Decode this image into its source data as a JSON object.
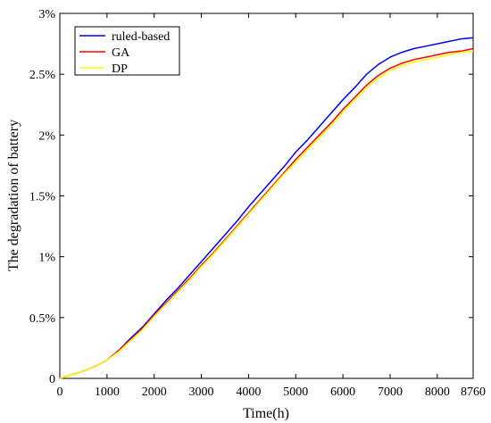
{
  "chart_data": {
    "type": "line",
    "title": "",
    "xlabel": "Time(h)",
    "ylabel": "The degradation  of battery",
    "xlim": [
      0,
      8760
    ],
    "ylim": [
      0,
      3
    ],
    "x_ticks": [
      0,
      1000,
      2000,
      3000,
      4000,
      5000,
      6000,
      7000,
      8000,
      8760
    ],
    "x_tick_labels": [
      "0",
      "1000",
      "2000",
      "3000",
      "4000",
      "5000",
      "6000",
      "7000",
      "8000",
      "8760"
    ],
    "y_ticks": [
      0,
      0.5,
      1,
      1.5,
      2,
      2.5,
      3
    ],
    "y_tick_labels": [
      "0",
      "0.5%",
      "1%",
      "1.5%",
      "2%",
      "2.5%",
      "3%"
    ],
    "grid": false,
    "legend_position": "top-left",
    "x": [
      0,
      250,
      500,
      750,
      1000,
      1250,
      1500,
      1750,
      2000,
      2250,
      2500,
      2750,
      3000,
      3250,
      3500,
      3750,
      4000,
      4250,
      4500,
      4750,
      5000,
      5250,
      5500,
      5750,
      6000,
      6250,
      6500,
      6750,
      7000,
      7250,
      7500,
      7750,
      8000,
      8250,
      8500,
      8760
    ],
    "series": [
      {
        "name": "ruled-based",
        "color": "#0000ff",
        "values": [
          0,
          0.03,
          0.06,
          0.1,
          0.15,
          0.23,
          0.33,
          0.42,
          0.53,
          0.64,
          0.74,
          0.85,
          0.96,
          1.07,
          1.18,
          1.29,
          1.41,
          1.52,
          1.63,
          1.74,
          1.86,
          1.96,
          2.07,
          2.18,
          2.29,
          2.39,
          2.5,
          2.58,
          2.64,
          2.68,
          2.71,
          2.73,
          2.75,
          2.77,
          2.79,
          2.8
        ]
      },
      {
        "name": "GA",
        "color": "#ff0000",
        "values": [
          0,
          0.03,
          0.06,
          0.1,
          0.15,
          0.23,
          0.32,
          0.41,
          0.52,
          0.62,
          0.72,
          0.82,
          0.93,
          1.03,
          1.14,
          1.25,
          1.36,
          1.47,
          1.58,
          1.69,
          1.8,
          1.9,
          2.0,
          2.1,
          2.21,
          2.31,
          2.41,
          2.49,
          2.55,
          2.59,
          2.62,
          2.64,
          2.66,
          2.68,
          2.69,
          2.71
        ]
      },
      {
        "name": "DP",
        "color": "#ffff00",
        "values": [
          0,
          0.03,
          0.06,
          0.1,
          0.15,
          0.22,
          0.31,
          0.4,
          0.51,
          0.61,
          0.71,
          0.81,
          0.92,
          1.02,
          1.13,
          1.24,
          1.35,
          1.46,
          1.57,
          1.68,
          1.78,
          1.88,
          1.98,
          2.08,
          2.19,
          2.29,
          2.39,
          2.47,
          2.53,
          2.57,
          2.6,
          2.62,
          2.64,
          2.66,
          2.68,
          2.69
        ]
      }
    ]
  }
}
